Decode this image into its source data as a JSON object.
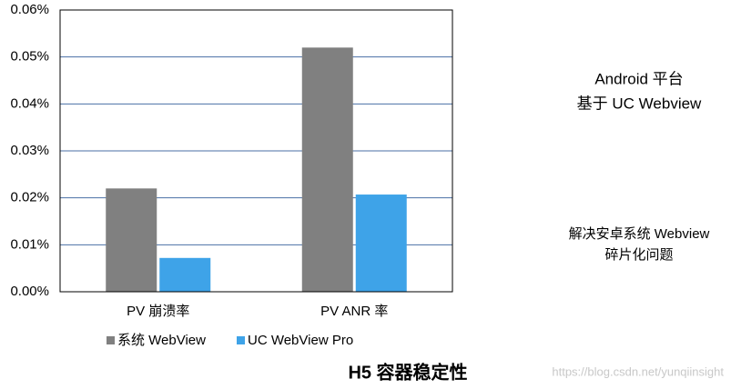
{
  "chart_data": {
    "type": "bar",
    "title": "H5 容器稳定性",
    "categories": [
      "PV 崩溃率",
      "PV ANR 率"
    ],
    "series": [
      {
        "name": "系统 WebView",
        "color": "#808080",
        "values": [
          0.022,
          0.052
        ]
      },
      {
        "name": "UC WebView Pro",
        "color": "#3ea3e8",
        "values": [
          0.0072,
          0.0207
        ]
      }
    ],
    "ylim": [
      0,
      0.06
    ],
    "yticks": [
      {
        "value": 0,
        "label": "0.00%"
      },
      {
        "value": 0.01,
        "label": "0.01%"
      },
      {
        "value": 0.02,
        "label": "0.02%"
      },
      {
        "value": 0.03,
        "label": "0.03%"
      },
      {
        "value": 0.04,
        "label": "0.04%"
      },
      {
        "value": 0.05,
        "label": "0.05%"
      },
      {
        "value": 0.06,
        "label": "0.06%"
      }
    ],
    "grid": true,
    "annotations": [
      "Android 平台",
      "基于 UC Webview",
      "解决安卓系统 Webview",
      "碎片化问题"
    ],
    "watermark": "https://blog.csdn.net/yunqiinsight"
  }
}
